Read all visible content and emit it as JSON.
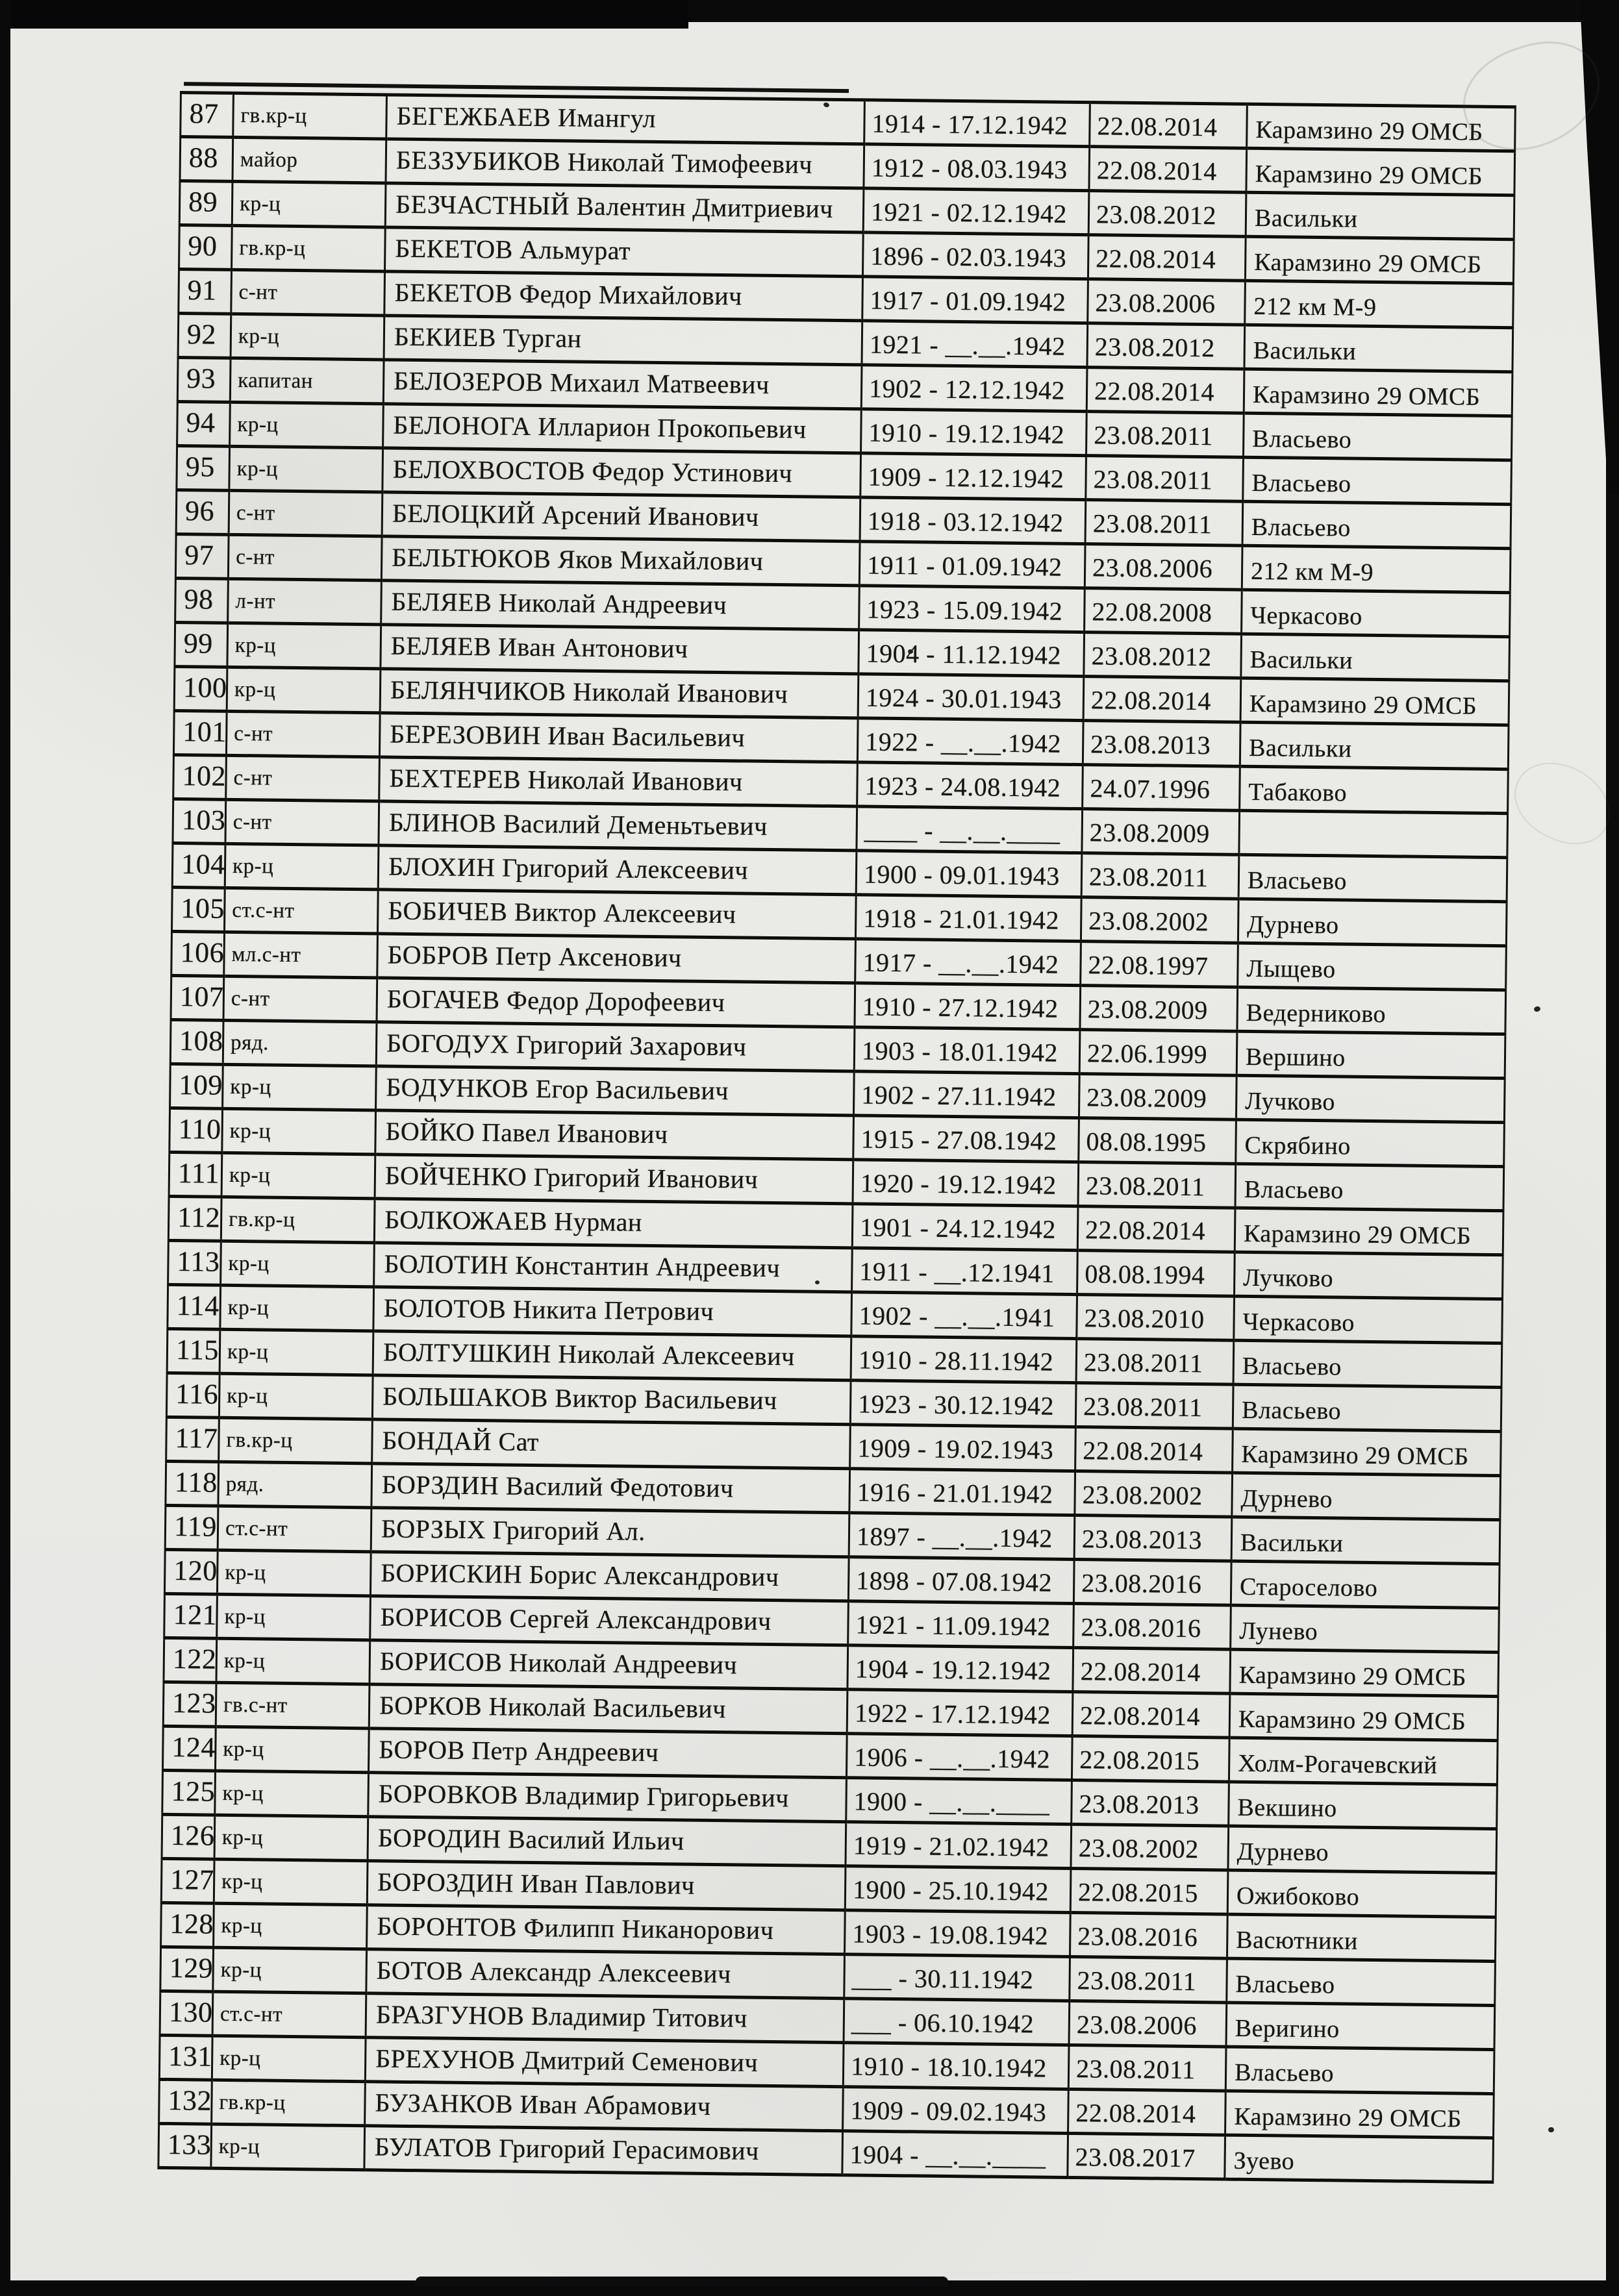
{
  "colors": {
    "paper": "#e9e9e6",
    "ink": "#171513",
    "scan_edge": "#0a0a0a"
  },
  "table": {
    "rows": [
      {
        "n": "87",
        "rank": "гв.кр-ц",
        "name": "БЕГЕЖБАЕВ Имангул",
        "dates": "1914 - 17.12.1942",
        "reburied": "22.08.2014",
        "place": "Карамзино 29 ОМСБ"
      },
      {
        "n": "88",
        "rank": "майор",
        "name": "БЕЗЗУБИКОВ Николай Тимофеевич",
        "dates": "1912 - 08.03.1943",
        "reburied": "22.08.2014",
        "place": "Карамзино 29 ОМСБ"
      },
      {
        "n": "89",
        "rank": "кр-ц",
        "name": "БЕЗЧАСТНЫЙ Валентин Дмитриевич",
        "dates": "1921 - 02.12.1942",
        "reburied": "23.08.2012",
        "place": "Васильки"
      },
      {
        "n": "90",
        "rank": "гв.кр-ц",
        "name": "БЕКЕТОВ Альмурат",
        "dates": "1896 - 02.03.1943",
        "reburied": "22.08.2014",
        "place": "Карамзино 29 ОМСБ"
      },
      {
        "n": "91",
        "rank": "с-нт",
        "name": "БЕКЕТОВ Федор Михайлович",
        "dates": "1917 - 01.09.1942",
        "reburied": "23.08.2006",
        "place": "212 км М-9"
      },
      {
        "n": "92",
        "rank": "кр-ц",
        "name": "БЕКИЕВ Турган",
        "dates": "1921 - __.__.1942",
        "reburied": "23.08.2012",
        "place": "Васильки"
      },
      {
        "n": "93",
        "rank": "капитан",
        "name": "БЕЛОЗЕРОВ Михаил Матвеевич",
        "dates": "1902 - 12.12.1942",
        "reburied": "22.08.2014",
        "place": "Карамзино 29 ОМСБ"
      },
      {
        "n": "94",
        "rank": "кр-ц",
        "name": "БЕЛОНОГА Илларион Прокопьевич",
        "dates": "1910 - 19.12.1942",
        "reburied": "23.08.2011",
        "place": "Власьево"
      },
      {
        "n": "95",
        "rank": "кр-ц",
        "name": "БЕЛОХВОСТОВ Федор Устинович",
        "dates": "1909 - 12.12.1942",
        "reburied": "23.08.2011",
        "place": "Власьево"
      },
      {
        "n": "96",
        "rank": "с-нт",
        "name": "БЕЛОЦКИЙ Арсений Иванович",
        "dates": "1918 - 03.12.1942",
        "reburied": "23.08.2011",
        "place": "Власьево"
      },
      {
        "n": "97",
        "rank": "с-нт",
        "name": "БЕЛЬТЮКОВ Яков Михайлович",
        "dates": "1911 - 01.09.1942",
        "reburied": "23.08.2006",
        "place": "212 км М-9"
      },
      {
        "n": "98",
        "rank": "л-нт",
        "name": "БЕЛЯЕВ  Николай Андреевич",
        "dates": "1923 - 15.09.1942",
        "reburied": "22.08.2008",
        "place": "Черкасово"
      },
      {
        "n": "99",
        "rank": "кр-ц",
        "name": "БЕЛЯЕВ Иван Антонович",
        "dates": "1904 - 11.12.1942",
        "reburied": "23.08.2012",
        "place": "Васильки"
      },
      {
        "n": "100",
        "rank": "кр-ц",
        "name": "БЕЛЯНЧИКОВ Николай Иванович",
        "dates": "1924 - 30.01.1943",
        "reburied": "22.08.2014",
        "place": "Карамзино 29 ОМСБ"
      },
      {
        "n": "101",
        "rank": "с-нт",
        "name": "БЕРЕЗОВИН Иван Васильевич",
        "dates": "1922 - __.__.1942",
        "reburied": "23.08.2013",
        "place": "Васильки"
      },
      {
        "n": "102",
        "rank": "с-нт",
        "name": "БЕХТЕРЕВ Николай Иванович",
        "dates": "1923 - 24.08.1942",
        "reburied": "24.07.1996",
        "place": "Табаково"
      },
      {
        "n": "103",
        "rank": "с-нт",
        "name": "БЛИНОВ  Василий Деменьтьевич",
        "dates": "____ - __.__.____",
        "reburied": "23.08.2009",
        "place": ""
      },
      {
        "n": "104",
        "rank": "кр-ц",
        "name": "БЛОХИН Григорий Алексеевич",
        "dates": "1900 - 09.01.1943",
        "reburied": "23.08.2011",
        "place": "Власьево"
      },
      {
        "n": "105",
        "rank": "ст.с-нт",
        "name": "БОБИЧЕВ Виктор Алексеевич",
        "dates": "1918 - 21.01.1942",
        "reburied": "23.08.2002",
        "place": "Дурнево"
      },
      {
        "n": "106",
        "rank": "мл.с-нт",
        "name": "БОБРОВ Петр Аксенович",
        "dates": "1917 - __.__.1942",
        "reburied": "22.08.1997",
        "place": "Лыщево"
      },
      {
        "n": "107",
        "rank": "с-нт",
        "name": "БОГАЧЕВ  Федор Дорофеевич",
        "dates": "1910 - 27.12.1942",
        "reburied": "23.08.2009",
        "place": "Ведерниково"
      },
      {
        "n": "108",
        "rank": "ряд.",
        "name": "БОГОДУХ Григорий Захарович",
        "dates": "1903 - 18.01.1942",
        "reburied": "22.06.1999",
        "place": "Вершино"
      },
      {
        "n": "109",
        "rank": "кр-ц",
        "name": "БОДУНКОВ  Егор Васильевич",
        "dates": "1902 - 27.11.1942",
        "reburied": "23.08.2009",
        "place": "Лучково"
      },
      {
        "n": "110",
        "rank": "кр-ц",
        "name": "БОЙКО  Павел  Иванович",
        "dates": "1915 - 27.08.1942",
        "reburied": "08.08.1995",
        "place": "Скрябино"
      },
      {
        "n": "111",
        "rank": "кр-ц",
        "name": "БОЙЧЕНКО Григорий Иванович",
        "dates": "1920 - 19.12.1942",
        "reburied": "23.08.2011",
        "place": "Власьево"
      },
      {
        "n": "112",
        "rank": "гв.кр-ц",
        "name": "БОЛКОЖАЕВ Нурман",
        "dates": "1901 - 24.12.1942",
        "reburied": "22.08.2014",
        "place": "Карамзино 29 ОМСБ"
      },
      {
        "n": "113",
        "rank": "кр-ц",
        "name": "БОЛОТИН  Константин  Андреевич",
        "dates": "1911 - __.12.1941",
        "reburied": "08.08.1994",
        "place": "Лучково"
      },
      {
        "n": "114",
        "rank": "кр-ц",
        "name": "БОЛОТОВ Никита Петрович",
        "dates": "1902 - __.__.1941",
        "reburied": "23.08.2010",
        "place": "Черкасово"
      },
      {
        "n": "115",
        "rank": "кр-ц",
        "name": "БОЛТУШКИН Николай Алексеевич",
        "dates": "1910 - 28.11.1942",
        "reburied": "23.08.2011",
        "place": "Власьево"
      },
      {
        "n": "116",
        "rank": "кр-ц",
        "name": "БОЛЬШАКОВ Виктор Васильевич",
        "dates": "1923 - 30.12.1942",
        "reburied": "23.08.2011",
        "place": "Власьево"
      },
      {
        "n": "117",
        "rank": "гв.кр-ц",
        "name": "БОНДАЙ Сат",
        "dates": "1909 - 19.02.1943",
        "reburied": "22.08.2014",
        "place": "Карамзино 29 ОМСБ"
      },
      {
        "n": "118",
        "rank": "ряд.",
        "name": "БОРЗДИН Василий Федотович",
        "dates": "1916 - 21.01.1942",
        "reburied": "23.08.2002",
        "place": "Дурнево"
      },
      {
        "n": "119",
        "rank": "ст.с-нт",
        "name": "БОРЗЫХ Григорий Ал.",
        "dates": "1897 - __.__.1942",
        "reburied": "23.08.2013",
        "place": "Васильки"
      },
      {
        "n": "120",
        "rank": "кр-ц",
        "name": "БОРИСКИН  Борис Александрович",
        "dates": "1898 - 07.08.1942",
        "reburied": "23.08.2016",
        "place": "Староселово"
      },
      {
        "n": "121",
        "rank": "кр-ц",
        "name": "БОРИСОВ  Сергей Александрович",
        "dates": "1921 - 11.09.1942",
        "reburied": "23.08.2016",
        "place": "Лунево"
      },
      {
        "n": "122",
        "rank": "кр-ц",
        "name": "БОРИСОВ Николай Андреевич",
        "dates": "1904 - 19.12.1942",
        "reburied": "22.08.2014",
        "place": "Карамзино 29 ОМСБ"
      },
      {
        "n": "123",
        "rank": "гв.с-нт",
        "name": "БОРКОВ Николай Васильевич",
        "dates": "1922 - 17.12.1942",
        "reburied": "22.08.2014",
        "place": "Карамзино 29 ОМСБ"
      },
      {
        "n": "124",
        "rank": "кр-ц",
        "name": "БОРОВ Петр Андреевич",
        "dates": "1906 - __.__.1942",
        "reburied": "22.08.2015",
        "place": "Холм-Рогачевский"
      },
      {
        "n": "125",
        "rank": "кр-ц",
        "name": "БОРОВКОВ Владимир Григорьевич",
        "dates": "1900 - __.__.____",
        "reburied": "23.08.2013",
        "place": "Векшино"
      },
      {
        "n": "126",
        "rank": "кр-ц",
        "name": "БОРОДИН Василий Ильич",
        "dates": "1919 - 21.02.1942",
        "reburied": "23.08.2002",
        "place": "Дурнево"
      },
      {
        "n": "127",
        "rank": "кр-ц",
        "name": "БОРОЗДИН Иван Павлович",
        "dates": "1900 - 25.10.1942",
        "reburied": "22.08.2015",
        "place": "Ожибоково"
      },
      {
        "n": "128",
        "rank": "кр-ц",
        "name": "БОРОНТОВ  Филипп Никанорович",
        "dates": "1903 - 19.08.1942",
        "reburied": "23.08.2016",
        "place": "Васютники"
      },
      {
        "n": "129",
        "rank": "кр-ц",
        "name": "БОТОВ Александр  Алексеевич",
        "dates": "___ - 30.11.1942",
        "reburied": "23.08.2011",
        "place": "Власьево"
      },
      {
        "n": "130",
        "rank": "ст.с-нт",
        "name": "БРАЗГУНОВ Владимир Титович",
        "dates": "___ - 06.10.1942",
        "reburied": "23.08.2006",
        "place": "Веригино"
      },
      {
        "n": "131",
        "rank": "кр-ц",
        "name": "БРЕХУНОВ Дмитрий Семенович",
        "dates": "1910 - 18.10.1942",
        "reburied": "23.08.2011",
        "place": "Власьево"
      },
      {
        "n": "132",
        "rank": "гв.кр-ц",
        "name": "БУЗАНКОВ Иван Абрамович",
        "dates": "1909 - 09.02.1943",
        "reburied": "22.08.2014",
        "place": "Карамзино 29 ОМСБ"
      },
      {
        "n": "133",
        "rank": "кр-ц",
        "name": "БУЛАТОВ Григорий Герасимович",
        "dates": "1904 - __.__.____",
        "reburied": "23.08.2017",
        "place": "Зуево"
      }
    ]
  }
}
